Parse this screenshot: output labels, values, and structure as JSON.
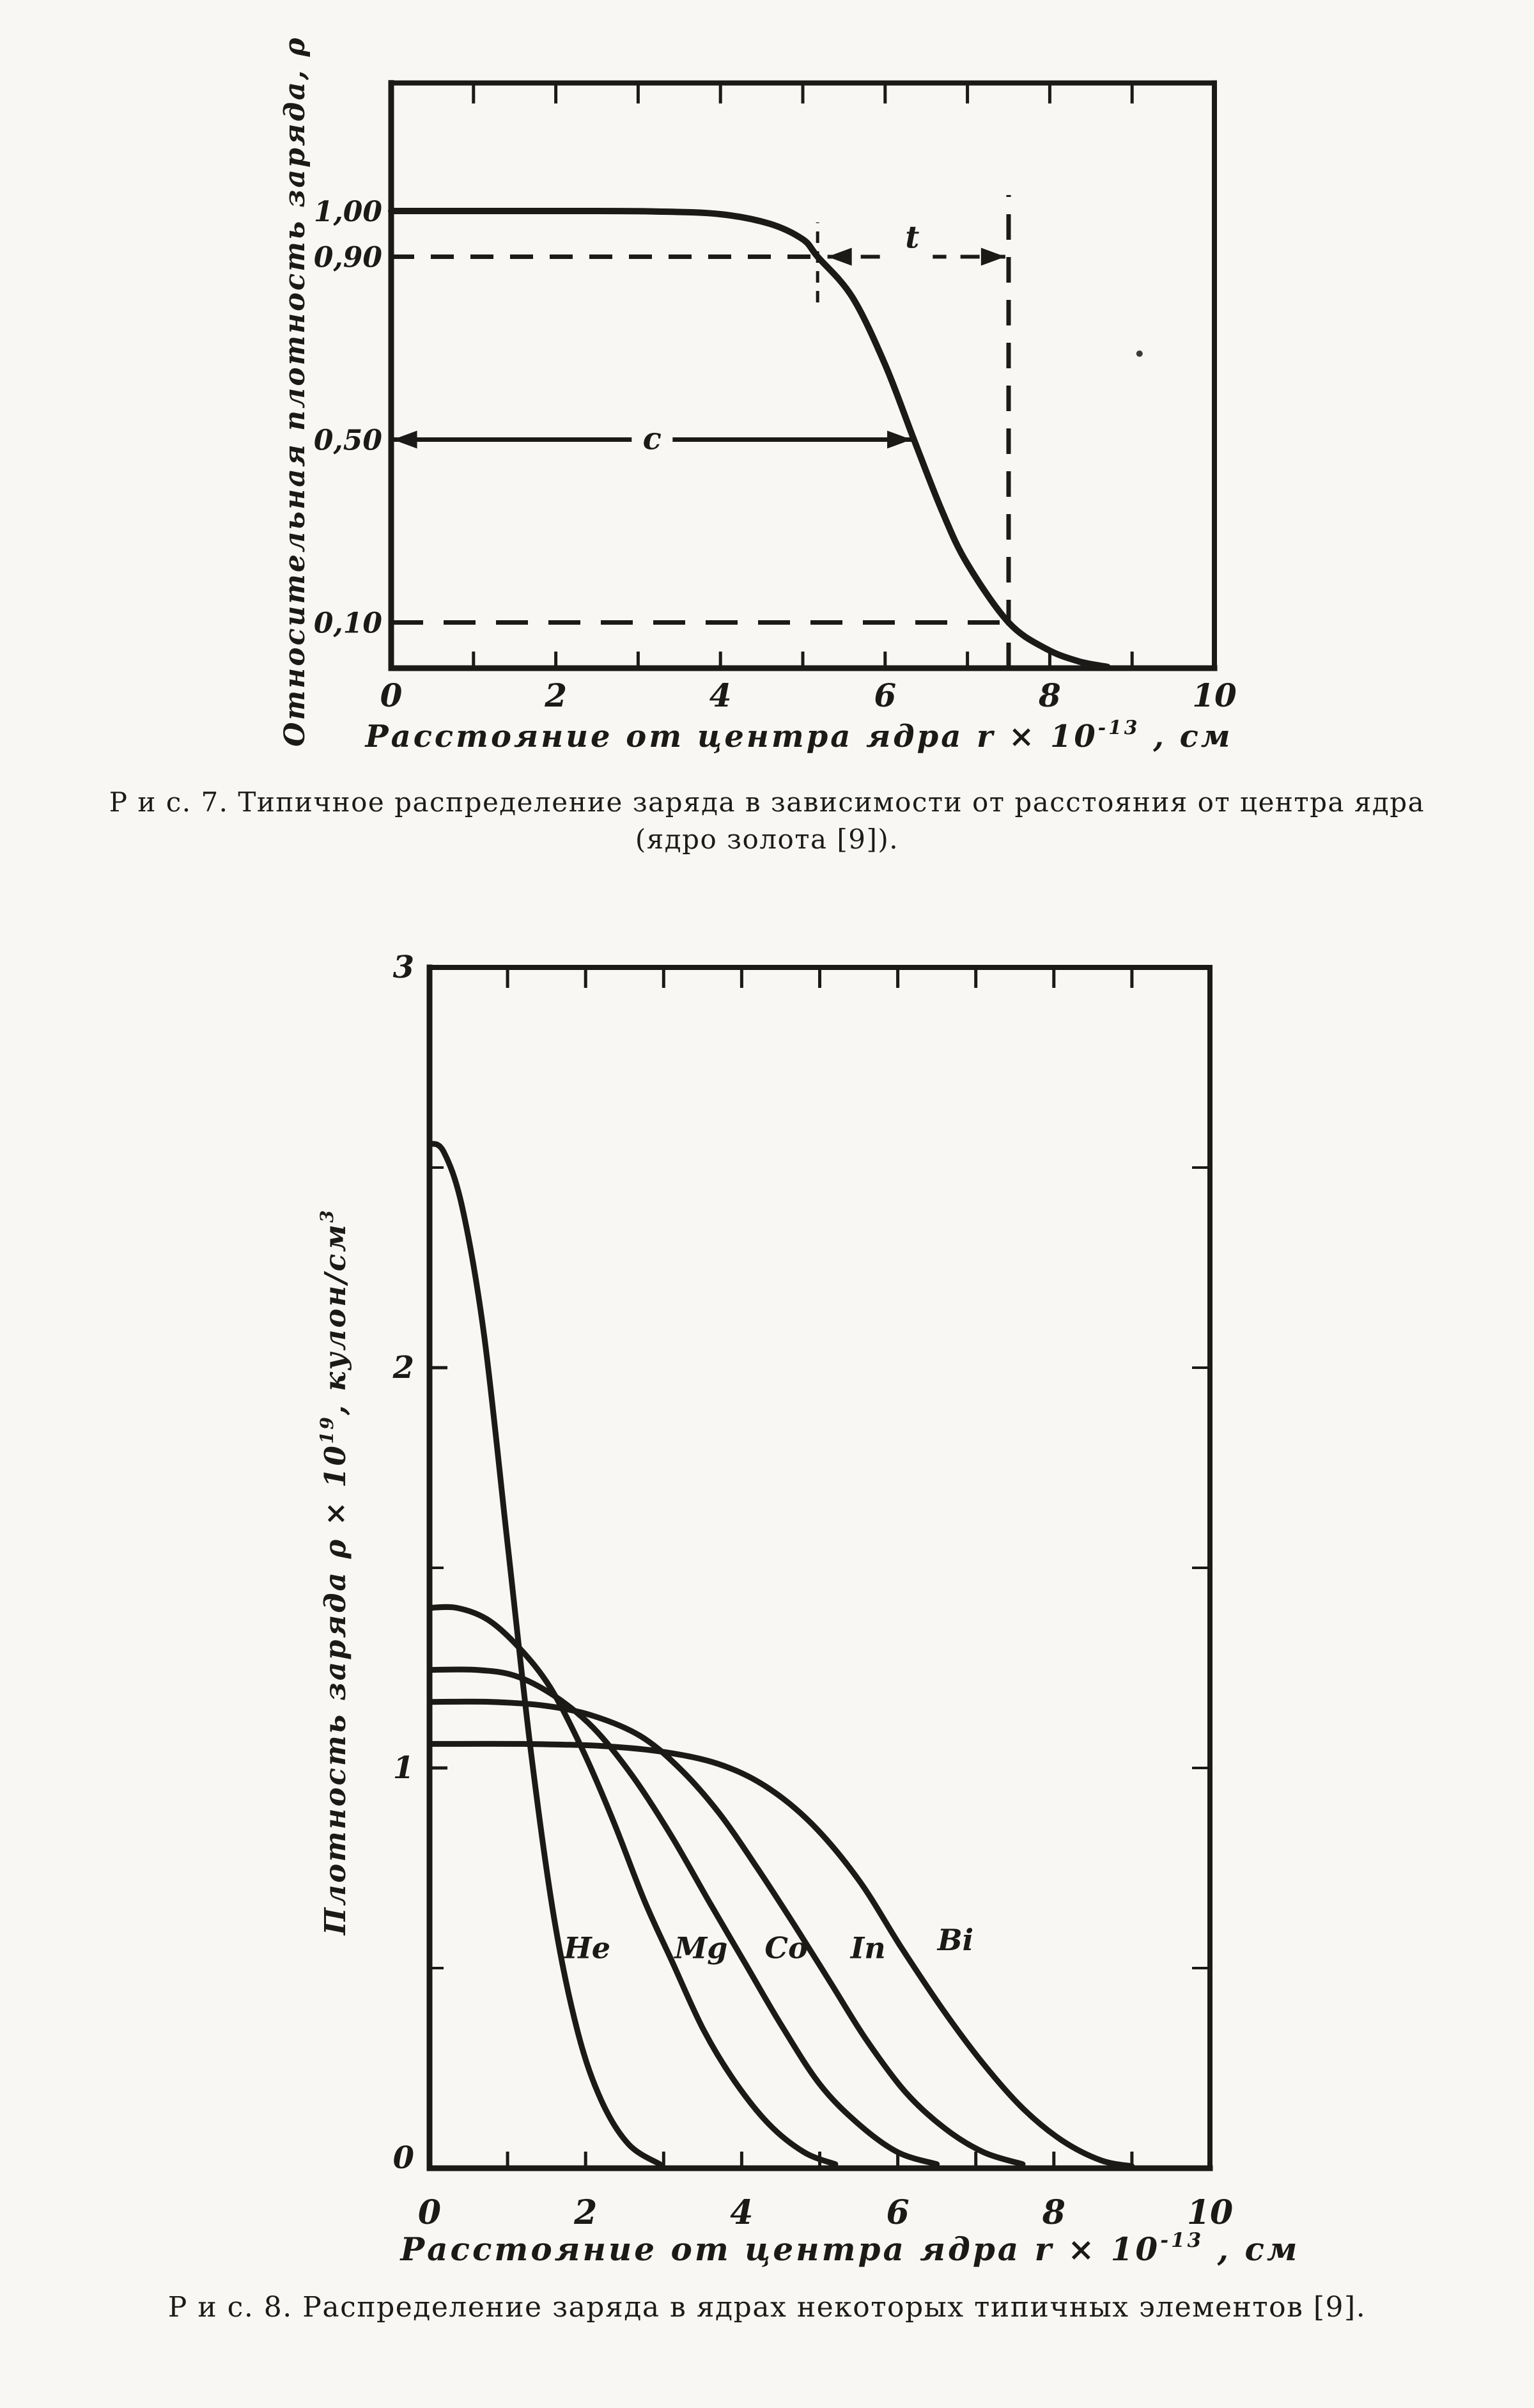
{
  "page": {
    "background": "#f8f7f4",
    "ink": "#1b1a18",
    "description": "Scanned Russian physics book page with two nuclear charge-density charts"
  },
  "chart_data": [
    {
      "id": "fig7",
      "type": "line",
      "caption_lines": [
        "Р и с. 7. Типичное распределение заряда в зависимости от расстояния от центра ядра",
        "(ядро золота [9])."
      ],
      "ylabel_parts": [
        {
          "t": "Относительная плотность заряда, ρ"
        }
      ],
      "xlabel_parts": [
        {
          "t": "Расстояние от центра ядра r × 10"
        },
        {
          "t": "-13",
          "sup": true
        },
        {
          "t": " , см"
        }
      ],
      "xlim": [
        0,
        10
      ],
      "ylim": [
        0,
        1.28
      ],
      "grid": false,
      "x_ticks": [
        {
          "v": 0,
          "label": "0"
        },
        {
          "v": 2,
          "label": "2"
        },
        {
          "v": 4,
          "label": "4"
        },
        {
          "v": 6,
          "label": "6"
        },
        {
          "v": 8,
          "label": "8"
        },
        {
          "v": 10,
          "label": "10"
        }
      ],
      "x_ticks_minor": [
        1,
        3,
        5,
        7,
        9
      ],
      "top_ticks": [
        1,
        2,
        3,
        4,
        5,
        6,
        7,
        8,
        9
      ],
      "y_ticks": [
        {
          "v": 1.0,
          "label": "1,00"
        },
        {
          "v": 0.9,
          "label": "0,90"
        },
        {
          "v": 0.5,
          "label": "0,50"
        },
        {
          "v": 0.1,
          "label": "0,10"
        }
      ],
      "y_ticks_minor": [],
      "right_ticks": [],
      "series": [
        {
          "name": "gold-nucleus-relative-charge-density",
          "width": 10,
          "points": [
            [
              0,
              1.0
            ],
            [
              2.2,
              1.0
            ],
            [
              3.2,
              0.999
            ],
            [
              4.0,
              0.993
            ],
            [
              4.6,
              0.972
            ],
            [
              5.0,
              0.938
            ],
            [
              5.18,
              0.9
            ],
            [
              5.6,
              0.812
            ],
            [
              6.0,
              0.664
            ],
            [
              6.35,
              0.5
            ],
            [
              6.7,
              0.34
            ],
            [
              7.0,
              0.228
            ],
            [
              7.5,
              0.1
            ],
            [
              7.95,
              0.043
            ],
            [
              8.35,
              0.015
            ],
            [
              8.7,
              0.003
            ]
          ]
        }
      ],
      "series_labels": [],
      "annotations": [
        {
          "kind": "hline",
          "y": 0.9,
          "x1": 0,
          "x2": 5.18,
          "dash": "36 26",
          "w": 7
        },
        {
          "kind": "arrow",
          "y": 0.9,
          "x1": 5.3,
          "x2": 7.46,
          "dash": "30 22",
          "w": 6,
          "label": "t",
          "label_x": 6.33,
          "label_pos": "above"
        },
        {
          "kind": "vline",
          "x": 5.18,
          "y1": 0.8,
          "y2": 0.975,
          "dash": "18 13",
          "w": 5
        },
        {
          "kind": "hline",
          "y": 0.1,
          "x1": 0,
          "x2": 7.43,
          "dash": "50 32",
          "w": 7
        },
        {
          "kind": "vline",
          "x": 7.5,
          "y1": 0,
          "y2": 1.035,
          "dash": "40 27",
          "w": 7
        },
        {
          "kind": "arrow",
          "y": 0.5,
          "x1": 0.02,
          "x2": 6.32,
          "dash": null,
          "w": 7,
          "label": "c",
          "label_x": 3.17,
          "label_pos": "on"
        },
        {
          "kind": "dot",
          "x": 9.09,
          "y": 0.688,
          "r": 5
        }
      ]
    },
    {
      "id": "fig8",
      "type": "line",
      "caption_lines": [
        "Р и с. 8. Распределение заряда в ядрах некоторых типичных элементов [9]."
      ],
      "ylabel_parts": [
        {
          "t": "Плотность заряда ρ × 10"
        },
        {
          "t": "19",
          "sup": true
        },
        {
          "t": ", кулон/см"
        },
        {
          "t": "3",
          "sup": true
        }
      ],
      "xlabel_parts": [
        {
          "t": "Расстояние от центра ядра r × 10"
        },
        {
          "t": "-13",
          "sup": true
        },
        {
          "t": " , см"
        }
      ],
      "xlim": [
        0,
        10
      ],
      "ylim": [
        0,
        3
      ],
      "grid": false,
      "x_ticks": [
        {
          "v": 0,
          "label": "0"
        },
        {
          "v": 2,
          "label": "2"
        },
        {
          "v": 4,
          "label": "4"
        },
        {
          "v": 6,
          "label": "6"
        },
        {
          "v": 8,
          "label": "8"
        },
        {
          "v": 10,
          "label": "10"
        }
      ],
      "x_ticks_minor": [
        1,
        3,
        5,
        7,
        9
      ],
      "top_ticks": [
        1,
        2,
        3,
        4,
        5,
        6,
        7,
        8,
        9
      ],
      "y_ticks": [
        {
          "v": 3,
          "label": "3"
        },
        {
          "v": 2,
          "label": "2"
        },
        {
          "v": 1,
          "label": "1"
        },
        {
          "v": 0,
          "label": "0",
          "dy": 0
        }
      ],
      "y_ticks_minor": [
        0.5,
        1.5,
        2.5
      ],
      "right_ticks": [
        0.5,
        1.0,
        1.5,
        2.0,
        2.5
      ],
      "series": [
        {
          "name": "He",
          "width": 9,
          "points": [
            [
              0,
              2.56
            ],
            [
              0.18,
              2.54
            ],
            [
              0.42,
              2.4
            ],
            [
              0.7,
              2.08
            ],
            [
              1.0,
              1.56
            ],
            [
              1.3,
              1.04
            ],
            [
              1.6,
              0.62
            ],
            [
              1.9,
              0.34
            ],
            [
              2.2,
              0.17
            ],
            [
              2.55,
              0.06
            ],
            [
              2.95,
              0.01
            ]
          ]
        },
        {
          "name": "Mg",
          "width": 9,
          "points": [
            [
              0,
              1.4
            ],
            [
              0.35,
              1.4
            ],
            [
              0.75,
              1.37
            ],
            [
              1.15,
              1.3
            ],
            [
              1.55,
              1.2
            ],
            [
              1.95,
              1.05
            ],
            [
              2.35,
              0.87
            ],
            [
              2.75,
              0.67
            ],
            [
              3.1,
              0.52
            ],
            [
              3.5,
              0.35
            ],
            [
              3.9,
              0.22
            ],
            [
              4.35,
              0.11
            ],
            [
              4.8,
              0.04
            ],
            [
              5.2,
              0.01
            ]
          ]
        },
        {
          "name": "Co",
          "width": 9,
          "points": [
            [
              0,
              1.245
            ],
            [
              0.6,
              1.245
            ],
            [
              1.1,
              1.23
            ],
            [
              1.6,
              1.18
            ],
            [
              2.1,
              1.1
            ],
            [
              2.6,
              0.98
            ],
            [
              3.1,
              0.83
            ],
            [
              3.6,
              0.66
            ],
            [
              4.05,
              0.51
            ],
            [
              4.5,
              0.36
            ],
            [
              5.0,
              0.21
            ],
            [
              5.5,
              0.11
            ],
            [
              6.0,
              0.04
            ],
            [
              6.5,
              0.01
            ]
          ]
        },
        {
          "name": "In",
          "width": 9,
          "points": [
            [
              0,
              1.165
            ],
            [
              0.8,
              1.165
            ],
            [
              1.5,
              1.155
            ],
            [
              2.1,
              1.13
            ],
            [
              2.7,
              1.08
            ],
            [
              3.2,
              1.0
            ],
            [
              3.7,
              0.89
            ],
            [
              4.2,
              0.75
            ],
            [
              4.7,
              0.6
            ],
            [
              5.15,
              0.46
            ],
            [
              5.6,
              0.32
            ],
            [
              6.1,
              0.19
            ],
            [
              6.6,
              0.1
            ],
            [
              7.1,
              0.04
            ],
            [
              7.6,
              0.01
            ]
          ]
        },
        {
          "name": "Bi",
          "width": 9,
          "points": [
            [
              0,
              1.06
            ],
            [
              1.2,
              1.06
            ],
            [
              2.2,
              1.055
            ],
            [
              3.0,
              1.04
            ],
            [
              3.7,
              1.01
            ],
            [
              4.3,
              0.955
            ],
            [
              4.9,
              0.86
            ],
            [
              5.5,
              0.72
            ],
            [
              6.05,
              0.55
            ],
            [
              6.6,
              0.39
            ],
            [
              7.1,
              0.26
            ],
            [
              7.6,
              0.15
            ],
            [
              8.1,
              0.07
            ],
            [
              8.6,
              0.02
            ],
            [
              9.0,
              0.005
            ]
          ]
        }
      ],
      "series_labels": [
        {
          "text": "He",
          "x": 2.02,
          "y": 0.55
        },
        {
          "text": "Mg",
          "x": 3.48,
          "y": 0.55
        },
        {
          "text": "Co",
          "x": 4.57,
          "y": 0.55
        },
        {
          "text": "In",
          "x": 5.62,
          "y": 0.55
        },
        {
          "text": "Bi",
          "x": 6.74,
          "y": 0.57
        }
      ],
      "annotations": []
    }
  ]
}
